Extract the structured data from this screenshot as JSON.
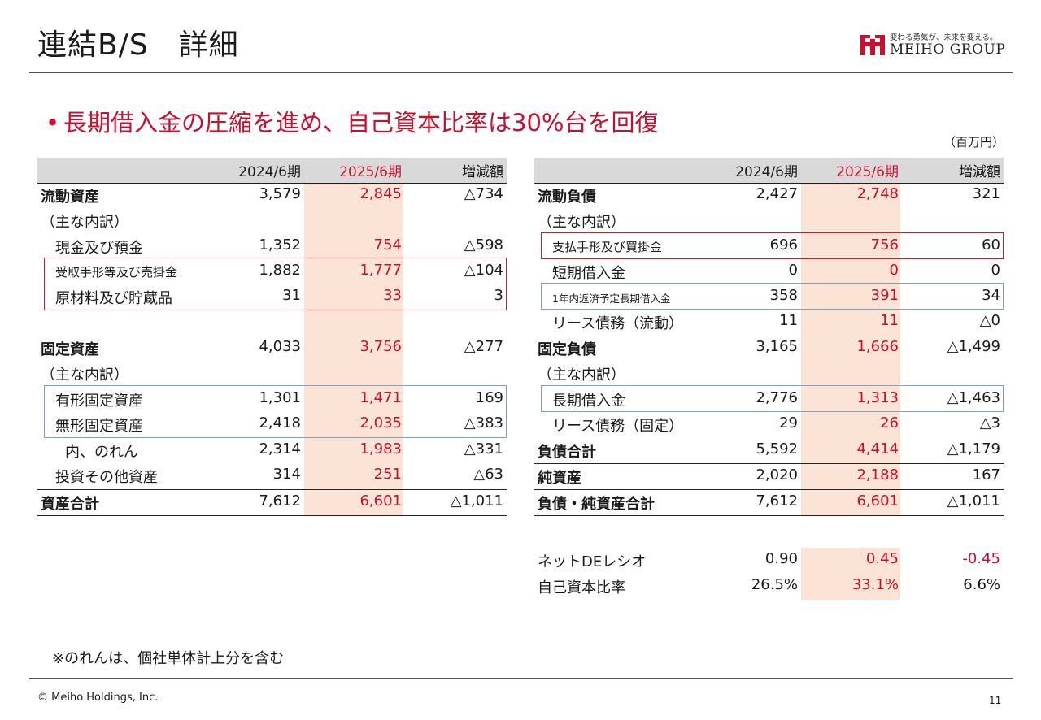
{
  "title": "連結B/S　詳細",
  "logo": {
    "tagline": "変わる勇気が、未来を変える。",
    "wordmark": "MEIHO GROUP"
  },
  "headline": {
    "bullet": "•",
    "text": "長期借入金の圧縮を進め、自己資本比率は30%台を回復"
  },
  "unit": "（百万円）",
  "columns": {
    "c1": "2024/6期",
    "c2": "2025/6期",
    "c3": "増減額"
  },
  "assets": {
    "current": {
      "label": "流動資産",
      "v1": "3,579",
      "v2": "2,845",
      "v3": "△734"
    },
    "breakdown1": "（主な内訳）",
    "cash": {
      "label": "現金及び預金",
      "v1": "1,352",
      "v2": "754",
      "v3": "△598"
    },
    "receivables": {
      "label": "受取手形等及び売掛金",
      "v1": "1,882",
      "v2": "1,777",
      "v3": "△104"
    },
    "materials": {
      "label": "原材料及び貯蔵品",
      "v1": "31",
      "v2": "33",
      "v3": "3"
    },
    "fixed": {
      "label": "固定資産",
      "v1": "4,033",
      "v2": "3,756",
      "v3": "△277"
    },
    "breakdown2": "（主な内訳）",
    "tangible": {
      "label": "有形固定資産",
      "v1": "1,301",
      "v2": "1,471",
      "v3": "169"
    },
    "intangible": {
      "label": "無形固定資産",
      "v1": "2,418",
      "v2": "2,035",
      "v3": "△383"
    },
    "goodwill": {
      "label": "内、のれん",
      "v1": "2,314",
      "v2": "1,983",
      "v3": "△331"
    },
    "investments": {
      "label": "投資その他資産",
      "v1": "314",
      "v2": "251",
      "v3": "△63"
    },
    "total": {
      "label": "資産合計",
      "v1": "7,612",
      "v2": "6,601",
      "v3": "△1,011"
    }
  },
  "liabilities": {
    "current": {
      "label": "流動負債",
      "v1": "2,427",
      "v2": "2,748",
      "v3": "321"
    },
    "breakdown1": "（主な内訳）",
    "payables": {
      "label": "支払手形及び買掛金",
      "v1": "696",
      "v2": "756",
      "v3": "60"
    },
    "short_loans": {
      "label": "短期借入金",
      "v1": "0",
      "v2": "0",
      "v3": "0"
    },
    "current_ltd": {
      "label": "1年内返済予定長期借入金",
      "v1": "358",
      "v2": "391",
      "v3": "34"
    },
    "lease_current": {
      "label": "リース債務（流動）",
      "v1": "11",
      "v2": "11",
      "v3": "△0"
    },
    "fixed": {
      "label": "固定負債",
      "v1": "3,165",
      "v2": "1,666",
      "v3": "△1,499"
    },
    "breakdown2": "（主な内訳）",
    "long_loans": {
      "label": "長期借入金",
      "v1": "2,776",
      "v2": "1,313",
      "v3": "△1,463"
    },
    "lease_fixed": {
      "label": "リース債務（固定）",
      "v1": "29",
      "v2": "26",
      "v3": "△3"
    },
    "total_liab": {
      "label": "負債合計",
      "v1": "5,592",
      "v2": "4,414",
      "v3": "△1,179"
    },
    "net_assets": {
      "label": "純資産",
      "v1": "2,020",
      "v2": "2,188",
      "v3": "167"
    },
    "total": {
      "label": "負債・純資産合計",
      "v1": "7,612",
      "v2": "6,601",
      "v3": "△1,011"
    }
  },
  "ratios": {
    "de": {
      "label": "ネットDEレシオ",
      "v1": "0.90",
      "v2": "0.45",
      "v3": "-0.45"
    },
    "equity": {
      "label": "自己資本比率",
      "v1": "26.5%",
      "v2": "33.1%",
      "v3": "6.6%"
    }
  },
  "note": "※のれんは、個社単体計上分を含む",
  "copyright": "© Meiho Holdings, Inc.",
  "page_number": "11",
  "colors": {
    "accent_red": "#c8102e",
    "highlight": "#fbe3d6",
    "box_red": "#c0252d",
    "box_blue": "#7aa3cc"
  }
}
